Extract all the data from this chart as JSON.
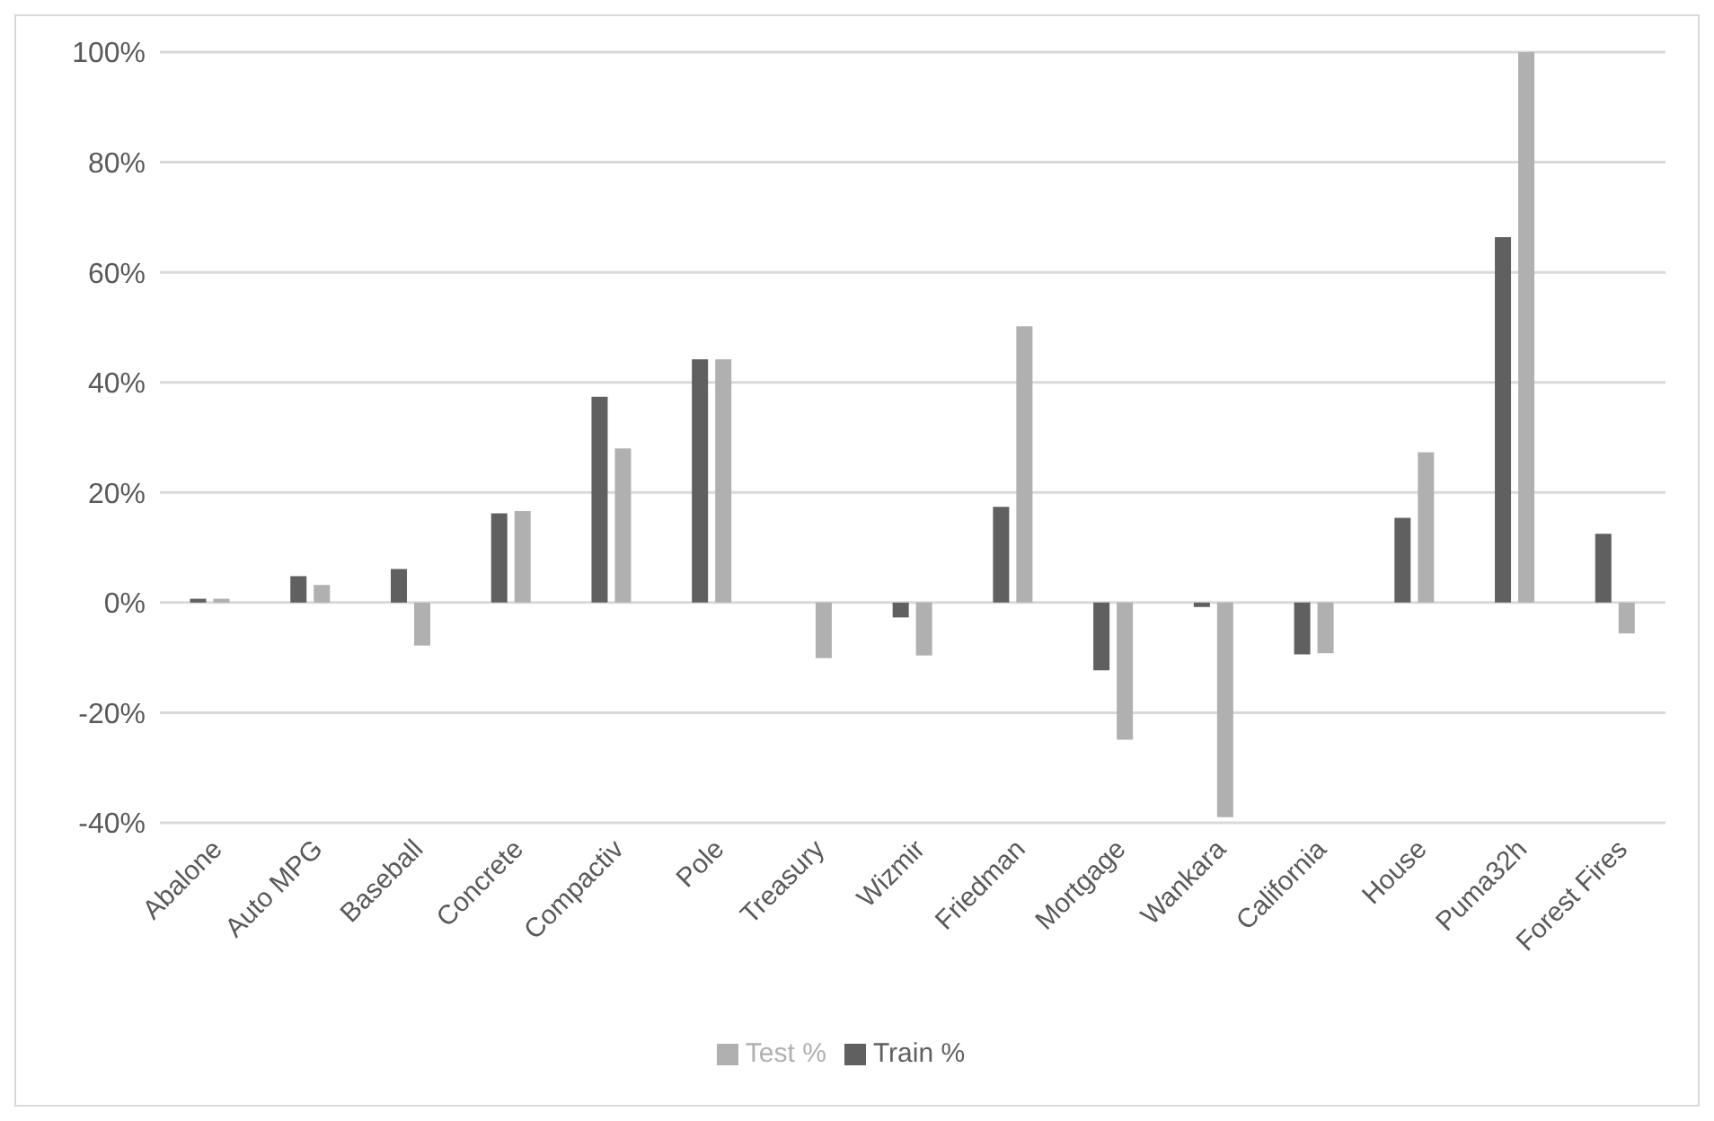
{
  "chart_data": {
    "type": "bar",
    "categories": [
      "Abalone",
      "Auto MPG",
      "Baseball",
      "Concrete",
      "Compactiv",
      "Pole",
      "Treasury",
      "Wizmir",
      "Friedman",
      "Mortgage",
      "Wankara",
      "California",
      "House",
      "Puma32h",
      "Forest Fires"
    ],
    "series": [
      {
        "name": "Train %",
        "color": "#606060",
        "values": [
          0.7,
          4.8,
          6.1,
          16.2,
          37.4,
          44.2,
          0,
          -2.7,
          17.4,
          -12.3,
          -0.8,
          -9.4,
          15.4,
          66.4,
          12.5
        ]
      },
      {
        "name": "Test %",
        "color": "#b0b0b0",
        "values": [
          0.7,
          3.2,
          -7.8,
          16.6,
          28.0,
          44.2,
          -10.1,
          -9.6,
          50.2,
          -24.9,
          -39,
          -9.2,
          27.3,
          100,
          -5.6
        ]
      }
    ],
    "ylim": [
      -40,
      100
    ],
    "yticks": [
      {
        "value": -40,
        "label": "-40%"
      },
      {
        "value": -20,
        "label": "-20%"
      },
      {
        "value": 0,
        "label": "0%"
      },
      {
        "value": 20,
        "label": "20%"
      },
      {
        "value": 40,
        "label": "40%"
      },
      {
        "value": 60,
        "label": "60%"
      },
      {
        "value": 80,
        "label": "80%"
      },
      {
        "value": 100,
        "label": "100%"
      }
    ],
    "grid": "y",
    "legend": "bottom"
  }
}
